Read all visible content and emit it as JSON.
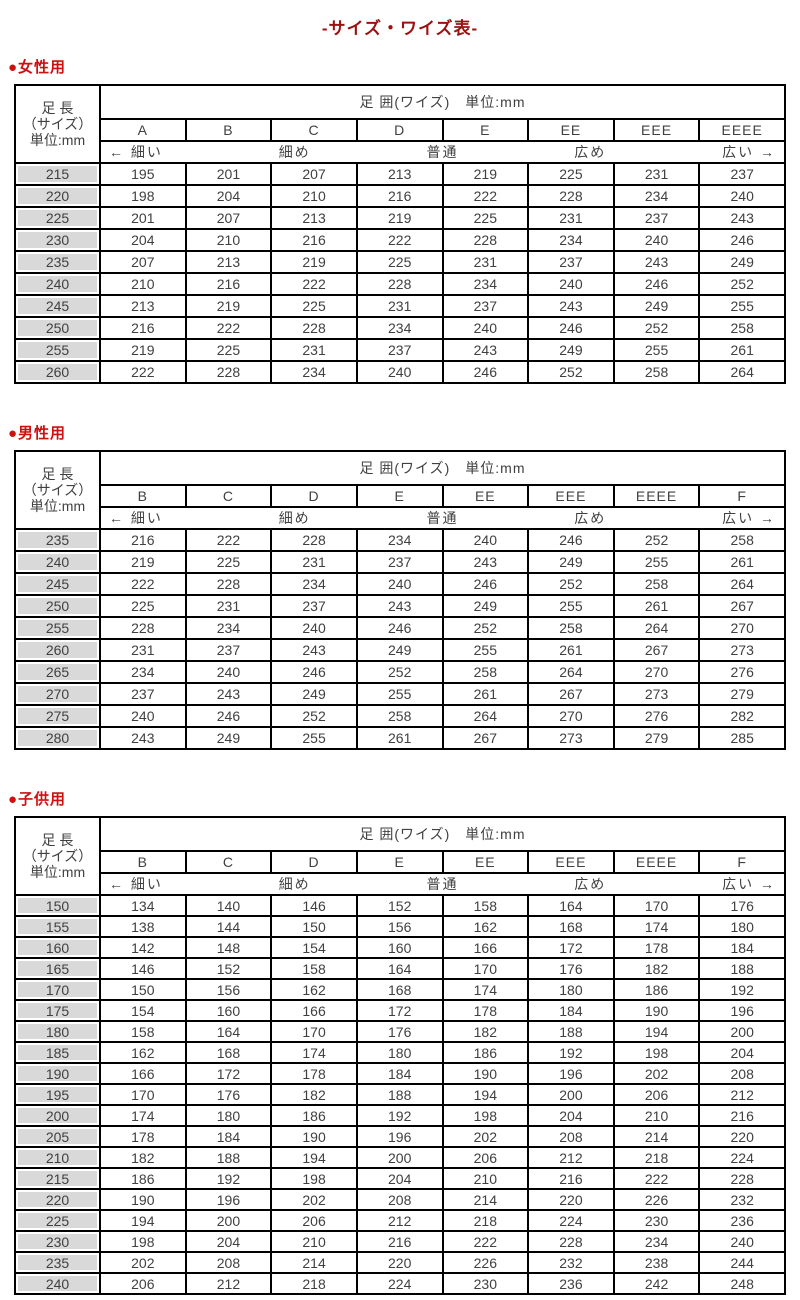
{
  "page": {
    "title": "-サイズ・ワイズ表-"
  },
  "colors": {
    "title": "#991111",
    "section_label": "#cc1111",
    "size_cell_bg": "#d9d9d9",
    "border": "#000000",
    "text": "#404040"
  },
  "common": {
    "corner_lines": [
      "足 長",
      "（サイズ）",
      "単位:mm"
    ],
    "girth_header": "足 囲(ワイズ)　単位:mm",
    "scale_labels": [
      "← 細い",
      "細め",
      "普通",
      "広め",
      "広い →"
    ]
  },
  "tables": [
    {
      "id": "women",
      "section_label": "●女性用",
      "columns": [
        "A",
        "B",
        "C",
        "D",
        "E",
        "EE",
        "EEE",
        "EEEE"
      ],
      "rows": [
        {
          "size": "215",
          "values": [
            "195",
            "201",
            "207",
            "213",
            "219",
            "225",
            "231",
            "237"
          ]
        },
        {
          "size": "220",
          "values": [
            "198",
            "204",
            "210",
            "216",
            "222",
            "228",
            "234",
            "240"
          ]
        },
        {
          "size": "225",
          "values": [
            "201",
            "207",
            "213",
            "219",
            "225",
            "231",
            "237",
            "243"
          ]
        },
        {
          "size": "230",
          "values": [
            "204",
            "210",
            "216",
            "222",
            "228",
            "234",
            "240",
            "246"
          ]
        },
        {
          "size": "235",
          "values": [
            "207",
            "213",
            "219",
            "225",
            "231",
            "237",
            "243",
            "249"
          ]
        },
        {
          "size": "240",
          "values": [
            "210",
            "216",
            "222",
            "228",
            "234",
            "240",
            "246",
            "252"
          ]
        },
        {
          "size": "245",
          "values": [
            "213",
            "219",
            "225",
            "231",
            "237",
            "243",
            "249",
            "255"
          ]
        },
        {
          "size": "250",
          "values": [
            "216",
            "222",
            "228",
            "234",
            "240",
            "246",
            "252",
            "258"
          ]
        },
        {
          "size": "255",
          "values": [
            "219",
            "225",
            "231",
            "237",
            "243",
            "249",
            "255",
            "261"
          ]
        },
        {
          "size": "260",
          "values": [
            "222",
            "228",
            "234",
            "240",
            "246",
            "252",
            "258",
            "264"
          ]
        }
      ]
    },
    {
      "id": "men",
      "section_label": "●男性用",
      "columns": [
        "B",
        "C",
        "D",
        "E",
        "EE",
        "EEE",
        "EEEE",
        "F"
      ],
      "rows": [
        {
          "size": "235",
          "values": [
            "216",
            "222",
            "228",
            "234",
            "240",
            "246",
            "252",
            "258"
          ]
        },
        {
          "size": "240",
          "values": [
            "219",
            "225",
            "231",
            "237",
            "243",
            "249",
            "255",
            "261"
          ]
        },
        {
          "size": "245",
          "values": [
            "222",
            "228",
            "234",
            "240",
            "246",
            "252",
            "258",
            "264"
          ]
        },
        {
          "size": "250",
          "values": [
            "225",
            "231",
            "237",
            "243",
            "249",
            "255",
            "261",
            "267"
          ]
        },
        {
          "size": "255",
          "values": [
            "228",
            "234",
            "240",
            "246",
            "252",
            "258",
            "264",
            "270"
          ]
        },
        {
          "size": "260",
          "values": [
            "231",
            "237",
            "243",
            "249",
            "255",
            "261",
            "267",
            "273"
          ]
        },
        {
          "size": "265",
          "values": [
            "234",
            "240",
            "246",
            "252",
            "258",
            "264",
            "270",
            "276"
          ]
        },
        {
          "size": "270",
          "values": [
            "237",
            "243",
            "249",
            "255",
            "261",
            "267",
            "273",
            "279"
          ]
        },
        {
          "size": "275",
          "values": [
            "240",
            "246",
            "252",
            "258",
            "264",
            "270",
            "276",
            "282"
          ]
        },
        {
          "size": "280",
          "values": [
            "243",
            "249",
            "255",
            "261",
            "267",
            "273",
            "279",
            "285"
          ]
        }
      ]
    },
    {
      "id": "children",
      "section_label": "●子供用",
      "columns": [
        "B",
        "C",
        "D",
        "E",
        "EE",
        "EEE",
        "EEEE",
        "F"
      ],
      "rows": [
        {
          "size": "150",
          "values": [
            "134",
            "140",
            "146",
            "152",
            "158",
            "164",
            "170",
            "176"
          ]
        },
        {
          "size": "155",
          "values": [
            "138",
            "144",
            "150",
            "156",
            "162",
            "168",
            "174",
            "180"
          ]
        },
        {
          "size": "160",
          "values": [
            "142",
            "148",
            "154",
            "160",
            "166",
            "172",
            "178",
            "184"
          ]
        },
        {
          "size": "165",
          "values": [
            "146",
            "152",
            "158",
            "164",
            "170",
            "176",
            "182",
            "188"
          ]
        },
        {
          "size": "170",
          "values": [
            "150",
            "156",
            "162",
            "168",
            "174",
            "180",
            "186",
            "192"
          ]
        },
        {
          "size": "175",
          "values": [
            "154",
            "160",
            "166",
            "172",
            "178",
            "184",
            "190",
            "196"
          ]
        },
        {
          "size": "180",
          "values": [
            "158",
            "164",
            "170",
            "176",
            "182",
            "188",
            "194",
            "200"
          ]
        },
        {
          "size": "185",
          "values": [
            "162",
            "168",
            "174",
            "180",
            "186",
            "192",
            "198",
            "204"
          ]
        },
        {
          "size": "190",
          "values": [
            "166",
            "172",
            "178",
            "184",
            "190",
            "196",
            "202",
            "208"
          ]
        },
        {
          "size": "195",
          "values": [
            "170",
            "176",
            "182",
            "188",
            "194",
            "200",
            "206",
            "212"
          ]
        },
        {
          "size": "200",
          "values": [
            "174",
            "180",
            "186",
            "192",
            "198",
            "204",
            "210",
            "216"
          ]
        },
        {
          "size": "205",
          "values": [
            "178",
            "184",
            "190",
            "196",
            "202",
            "208",
            "214",
            "220"
          ]
        },
        {
          "size": "210",
          "values": [
            "182",
            "188",
            "194",
            "200",
            "206",
            "212",
            "218",
            "224"
          ]
        },
        {
          "size": "215",
          "values": [
            "186",
            "192",
            "198",
            "204",
            "210",
            "216",
            "222",
            "228"
          ]
        },
        {
          "size": "220",
          "values": [
            "190",
            "196",
            "202",
            "208",
            "214",
            "220",
            "226",
            "232"
          ]
        },
        {
          "size": "225",
          "values": [
            "194",
            "200",
            "206",
            "212",
            "218",
            "224",
            "230",
            "236"
          ]
        },
        {
          "size": "230",
          "values": [
            "198",
            "204",
            "210",
            "216",
            "222",
            "228",
            "234",
            "240"
          ]
        },
        {
          "size": "235",
          "values": [
            "202",
            "208",
            "214",
            "220",
            "226",
            "232",
            "238",
            "244"
          ]
        },
        {
          "size": "240",
          "values": [
            "206",
            "212",
            "218",
            "224",
            "230",
            "236",
            "242",
            "248"
          ]
        }
      ]
    }
  ]
}
